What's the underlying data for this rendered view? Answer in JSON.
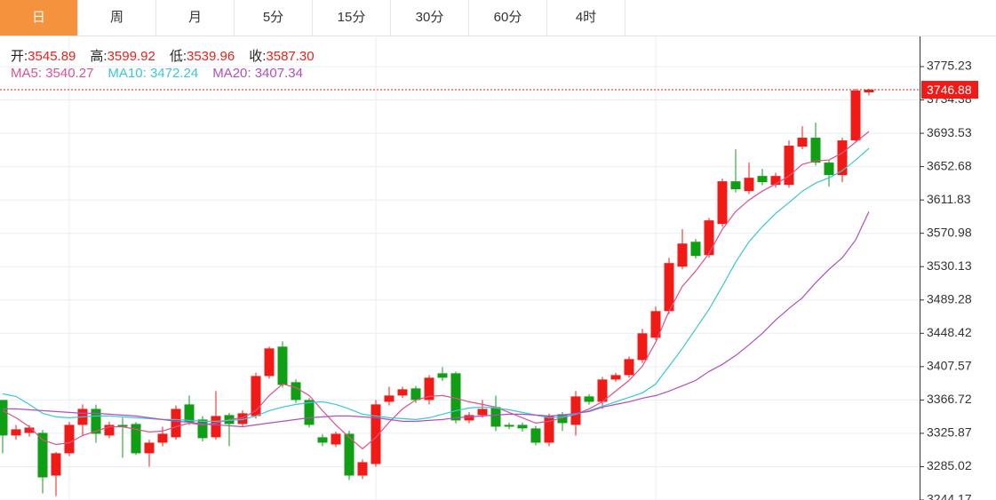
{
  "tabs": [
    "日",
    "周",
    "月",
    "5分",
    "15分",
    "30分",
    "60分",
    "4时"
  ],
  "active_tab": 0,
  "chart_data": {
    "type": "candlestick",
    "info": [
      {
        "label": "开:",
        "value": "3545.89"
      },
      {
        "label": "高:",
        "value": "3599.92"
      },
      {
        "label": "低:",
        "value": "3539.96"
      },
      {
        "label": "收:",
        "value": "3587.30"
      }
    ],
    "info_value_color": "#e8221d",
    "open": [
      3366.7,
      3323.2,
      3326.4,
      3326.4,
      3274.1,
      3301.4,
      3336.2,
      3355.8,
      3323.2,
      3336.2,
      3337.3,
      3301.4,
      3314.4,
      3321.0,
      3361.3,
      3342.8,
      3321.0,
      3348.2,
      3337.3,
      3347.1,
      3396.1,
      3432.1,
      3388.5,
      3366.7,
      3321.0,
      3312.2,
      3325.3,
      3274.1,
      3288.3,
      3364.5,
      3372.2,
      3380.9,
      3366.7,
      3399.4,
      3399.4,
      3341.7,
      3348.2,
      3358.0,
      3336.2,
      3336.2,
      3331.9,
      3314.4,
      3349.3,
      3336.2,
      3371.1,
      3364.5,
      3391.8,
      3397.2,
      3415.7,
      3443.0,
      3475.6,
      3530.1,
      3560.6,
      3544.3,
      3582.4,
      3634.7,
      3622.7,
      3641.2,
      3630.3,
      3630.3,
      3677.2,
      3688.1,
      3657.6,
      3642.3,
      3684.8,
      3743.6
    ],
    "high": [
      3366.7,
      3336,
      3336,
      3330,
      3303,
      3340,
      3361.3,
      3361,
      3340,
      3344.9,
      3339.5,
      3318,
      3334.0,
      3360,
      3372.2,
      3347,
      3377.6,
      3351,
      3354,
      3400,
      3432.1,
      3438.6,
      3392,
      3369,
      3325,
      3328,
      3329,
      3294,
      3366.7,
      3383.1,
      3383,
      3384,
      3397,
      3407.0,
      3401.6,
      3352,
      3366.7,
      3372.2,
      3339,
      3339,
      3335,
      3350,
      3352,
      3377.6,
      3374,
      3395,
      3400,
      3420,
      3453.9,
      3481.1,
      3541.0,
      3575.9,
      3564,
      3590,
      3638,
      3673.9,
      3657.6,
      3649.9,
      3645,
      3684.8,
      3702.2,
      3706.6,
      3661,
      3688,
      3748.0,
      3748.0
    ],
    "low": [
      3301.4,
      3318,
      3322,
      3252.3,
      3249.1,
      3298,
      3323.2,
      3314.4,
      3320,
      3295.9,
      3299.2,
      3285.0,
      3310,
      3318,
      3336,
      3316,
      3318,
      3310.1,
      3334,
      3344,
      3393,
      3382,
      3363,
      3333,
      3310,
      3309,
      3268.7,
      3270,
      3285,
      3360,
      3369,
      3363,
      3361.3,
      3390,
      3338,
      3338,
      3345,
      3328.6,
      3331,
      3328,
      3311,
      3310.1,
      3328.6,
      3323.2,
      3361,
      3355.8,
      3389,
      3394,
      3412,
      3440,
      3472,
      3527,
      3540,
      3541,
      3579,
      3621,
      3619,
      3630,
      3627,
      3627,
      3674,
      3654,
      3628.1,
      3633.6,
      3682,
      3740
    ],
    "close": [
      3323.2,
      3330.8,
      3332.9,
      3271.9,
      3301.4,
      3336.2,
      3355.8,
      3325.3,
      3336.2,
      3334.0,
      3301.4,
      3314.4,
      3325.3,
      3355.8,
      3339.5,
      3319.9,
      3347.1,
      3337.3,
      3350.4,
      3396.1,
      3429.9,
      3385.2,
      3366.7,
      3336.2,
      3314.4,
      3325.3,
      3274.1,
      3290.5,
      3361.3,
      3372.2,
      3379.8,
      3366.7,
      3394.0,
      3394.0,
      3341.7,
      3348.2,
      3355.8,
      3334.0,
      3334.0,
      3331.9,
      3314.4,
      3347.1,
      3338.4,
      3371.1,
      3364.5,
      3391.8,
      3397.2,
      3416.8,
      3448.4,
      3475.6,
      3534.5,
      3558.4,
      3543.2,
      3586.8,
      3634.7,
      3624.9,
      3639.0,
      3633.6,
      3641.2,
      3678.3,
      3688.1,
      3657.6,
      3642.3,
      3684.8,
      3745.8,
      3746.9
    ],
    "up_color": "#f01a16",
    "down_color": "#0f9e14",
    "series": [
      {
        "name": "MA5:",
        "legend_value": "3540.27",
        "color": "#e0508c",
        "values": [
          3353.6,
          3344.9,
          3334.0,
          3317.7,
          3312.2,
          3314.4,
          3323.2,
          3328.6,
          3334.0,
          3334.0,
          3330.8,
          3327.5,
          3328.6,
          3334.0,
          3338.4,
          3336.2,
          3338.4,
          3342.8,
          3344.9,
          3353.6,
          3372.2,
          3386.3,
          3382.0,
          3372.2,
          3353.6,
          3336.2,
          3321.0,
          3306.8,
          3321.0,
          3339.5,
          3355.8,
          3366.7,
          3371.1,
          3372.2,
          3368.9,
          3364.5,
          3361.3,
          3358.0,
          3351.5,
          3344.9,
          3338.4,
          3340.6,
          3344.9,
          3349.3,
          3355.8,
          3364.5,
          3377.6,
          3390.7,
          3408.1,
          3437.5,
          3475.6,
          3506.1,
          3524.7,
          3546.4,
          3575.9,
          3597.6,
          3611.8,
          3622.7,
          3631.4,
          3641.2,
          3655.4,
          3659.7,
          3660.8,
          3669.5,
          3682.6,
          3695.7
        ]
      },
      {
        "name": "MA10:",
        "legend_value": "3472.24",
        "color": "#3cc6d6",
        "values": [
          3374.3,
          3371.1,
          3361.3,
          3350.4,
          3346.0,
          3344.9,
          3346.0,
          3347.1,
          3347.1,
          3346.0,
          3344.9,
          3343.8,
          3342.8,
          3342.8,
          3341.7,
          3340.6,
          3340.6,
          3341.7,
          3342.8,
          3347.1,
          3353.6,
          3358.0,
          3361.3,
          3363.4,
          3364.5,
          3361.3,
          3355.8,
          3349.3,
          3347.1,
          3344.9,
          3343.8,
          3342.8,
          3344.9,
          3349.3,
          3353.6,
          3356.9,
          3358.0,
          3356.9,
          3354.7,
          3351.5,
          3348.2,
          3344.9,
          3346.0,
          3349.3,
          3353.6,
          3359.1,
          3364.5,
          3370.0,
          3375.4,
          3386.3,
          3408.1,
          3429.9,
          3453.9,
          3477.8,
          3506.1,
          3535.6,
          3560.6,
          3579.1,
          3595.5,
          3608.5,
          3622.7,
          3632.5,
          3639.0,
          3647.8,
          3660.8,
          3675.0
        ]
      },
      {
        "name": "MA20:",
        "legend_value": "3407.34",
        "color": "#b04fc2",
        "values": [
          3355.8,
          3355.8,
          3354.7,
          3353.6,
          3352.6,
          3351.5,
          3350.4,
          3350.4,
          3349.3,
          3348.2,
          3347.1,
          3344.9,
          3342.8,
          3340.6,
          3339.5,
          3337.3,
          3336.2,
          3335.1,
          3334.0,
          3336.2,
          3338.4,
          3340.6,
          3342.8,
          3344.9,
          3346.0,
          3347.1,
          3347.1,
          3346.0,
          3344.9,
          3342.8,
          3340.6,
          3340.6,
          3341.7,
          3342.8,
          3344.9,
          3346.0,
          3347.1,
          3348.2,
          3349.3,
          3349.3,
          3348.2,
          3347.1,
          3348.2,
          3350.4,
          3352.6,
          3358.0,
          3361.3,
          3364.5,
          3368.9,
          3372.2,
          3377.6,
          3384.1,
          3390.7,
          3401.6,
          3410.3,
          3421.2,
          3434.3,
          3448.4,
          3464.8,
          3478.9,
          3492.0,
          3510.5,
          3526.8,
          3541.0,
          3562.8,
          3597.6
        ]
      }
    ],
    "ylim": [
      3244.17,
      3811.14
    ],
    "yticks": [
      3244.17,
      3285.02,
      3325.87,
      3366.72,
      3407.57,
      3448.42,
      3489.28,
      3530.13,
      3570.98,
      3611.83,
      3652.68,
      3693.53,
      3734.38,
      3775.23
    ],
    "last_price": 3746.88,
    "last_price_color": "#f01a16",
    "grid": true
  }
}
